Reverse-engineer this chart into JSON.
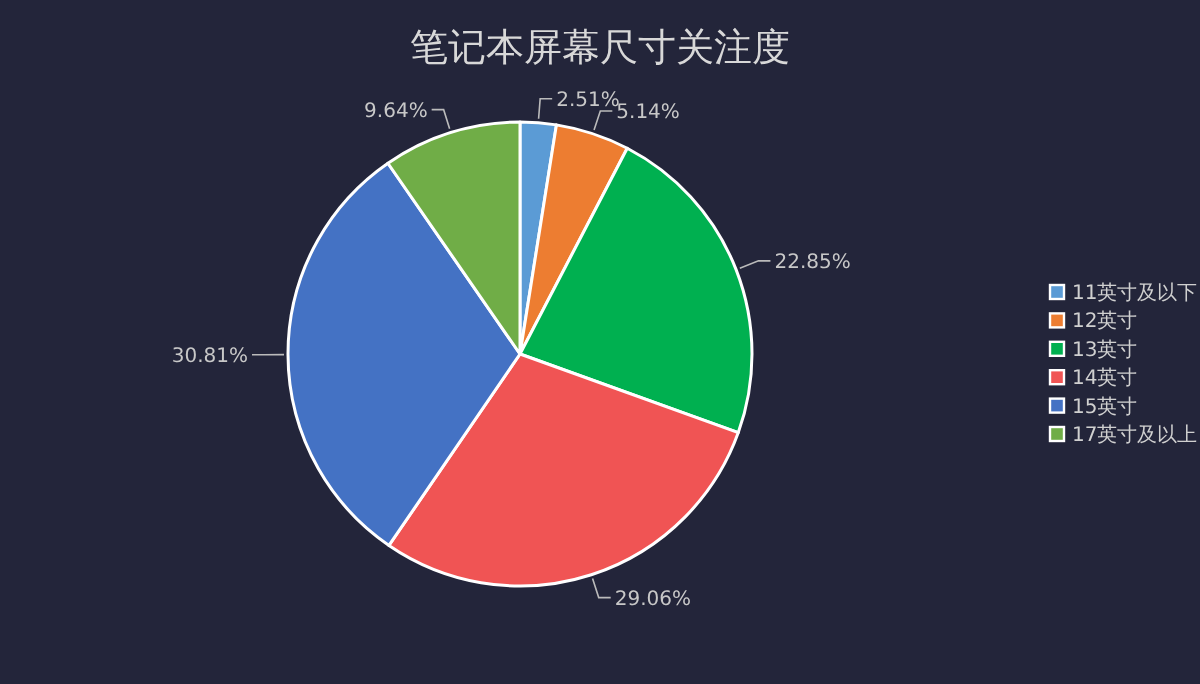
{
  "chart_data": {
    "type": "pie",
    "title": "笔记本屏幕尺寸关注度",
    "categories": [
      "11英寸及以下",
      "12英寸",
      "13英寸",
      "14英寸",
      "15英寸",
      "17英寸及以上"
    ],
    "values": [
      2.51,
      5.14,
      22.85,
      29.06,
      30.81,
      9.64
    ],
    "value_labels": [
      "2.51%",
      "5.14%",
      "22.85%",
      "29.06%",
      "30.81%",
      "9.64%"
    ],
    "colors": [
      "#5b9bd5",
      "#ed7d31",
      "#00b050",
      "#f05454",
      "#4472c4",
      "#70ad47"
    ],
    "legend": "right"
  }
}
